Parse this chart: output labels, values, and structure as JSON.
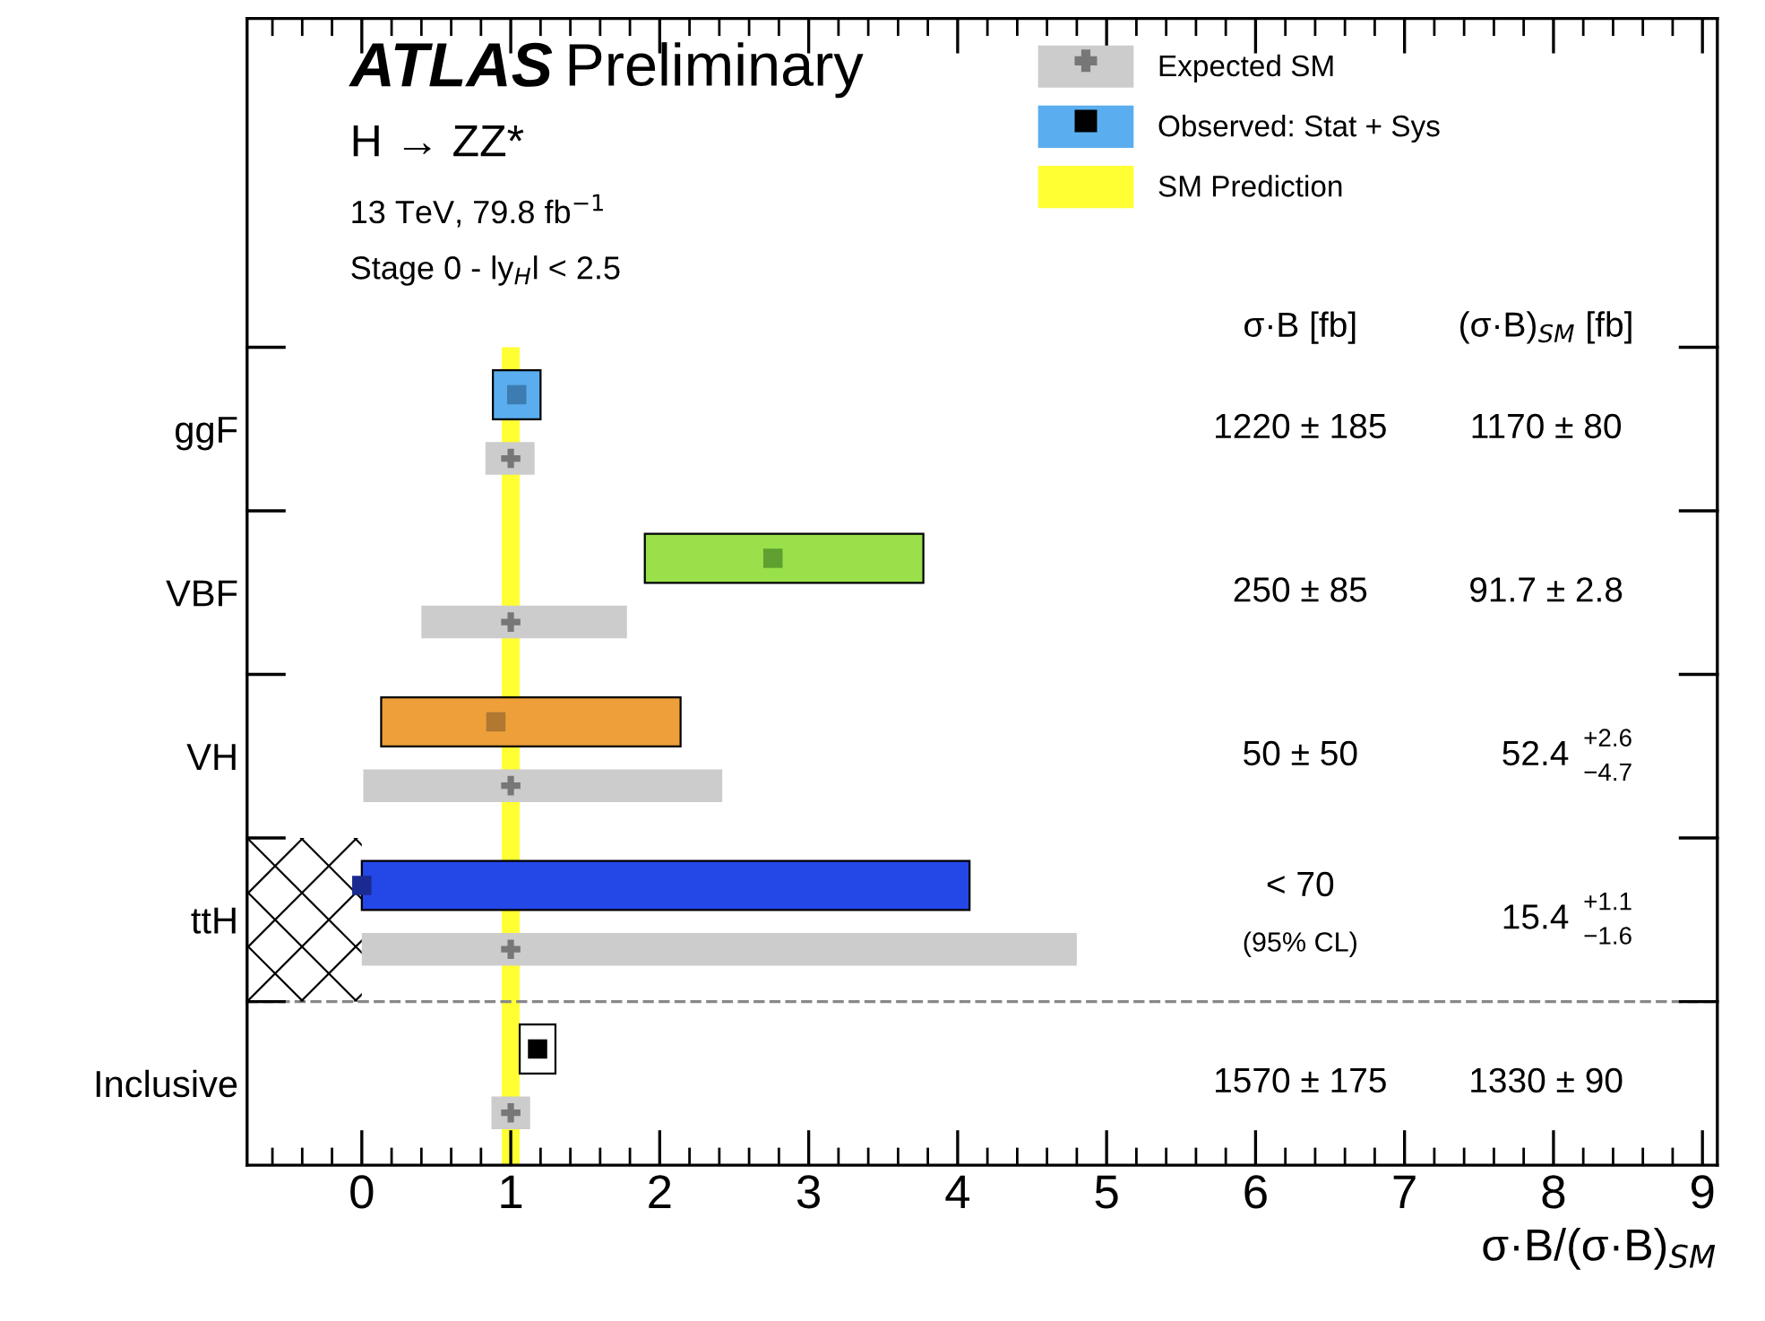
{
  "chart_data": {
    "type": "bar",
    "orientation": "horizontal",
    "title": "ATLAS Preliminary",
    "subtitle": "H → ZZ*",
    "xlabel": "σ·B/(σ·B)$_{SM}$",
    "categories": [
      "ggF",
      "VBF",
      "VH",
      "ttH",
      "Inclusive"
    ],
    "xlim": [
      -0.77,
      9.1
    ],
    "xticks": [
      0,
      1,
      2,
      3,
      4,
      5,
      6,
      7,
      8,
      9
    ],
    "legend": "top right",
    "grid": false,
    "series": [
      {
        "name": "Observed: Stat + Sys",
        "colors": [
          "#5aaeef",
          "#99e04a",
          "#ee9f3a",
          "#2447e8",
          "#ffffff"
        ],
        "base": [
          0.88,
          1.9,
          0.13,
          0.0,
          1.06
        ],
        "values": [
          0.32,
          1.87,
          2.01,
          4.08,
          0.24
        ]
      },
      {
        "name": "Expected SM",
        "color": "#cccccc",
        "base": [
          0.83,
          0.4,
          0.01,
          0.0,
          0.87
        ],
        "values": [
          0.33,
          1.38,
          2.41,
          4.8,
          0.26
        ]
      },
      {
        "type": "scatter",
        "marker": "square",
        "colors": [
          "#3c7cb0",
          "#5fa030",
          "#b07830",
          "#1a2a90",
          "#000000"
        ],
        "values": [
          1.04,
          2.76,
          0.9,
          0.0,
          1.18
        ]
      },
      {
        "type": "scatter",
        "marker": "cross",
        "color": "#777777",
        "values": [
          1,
          1,
          1,
          1,
          1
        ]
      }
    ],
    "bands": [
      {
        "axis": "x",
        "from": 0.94,
        "to": 1.06,
        "label": "SM Prediction",
        "color": "#ffff33"
      }
    ],
    "annotations": [
      "13 TeV, 79.8 fb$^{−1}$",
      "Stage 0 - ly$_{H}$l < 2.5",
      "σ·B [fb]",
      "(σ·B)$_{SM}$ [fb]",
      "1220 ± 185",
      "1170 ± 80",
      "250 ± 85",
      "91.7 ± 2.8",
      "50 ± 50",
      "52.4",
      "< 70",
      "15.4",
      "(95% CL)",
      "1570 ± 175",
      "1330 ± 90",
      "+2.6",
      "−4.7",
      "+1.1",
      "−1.6"
    ]
  }
}
